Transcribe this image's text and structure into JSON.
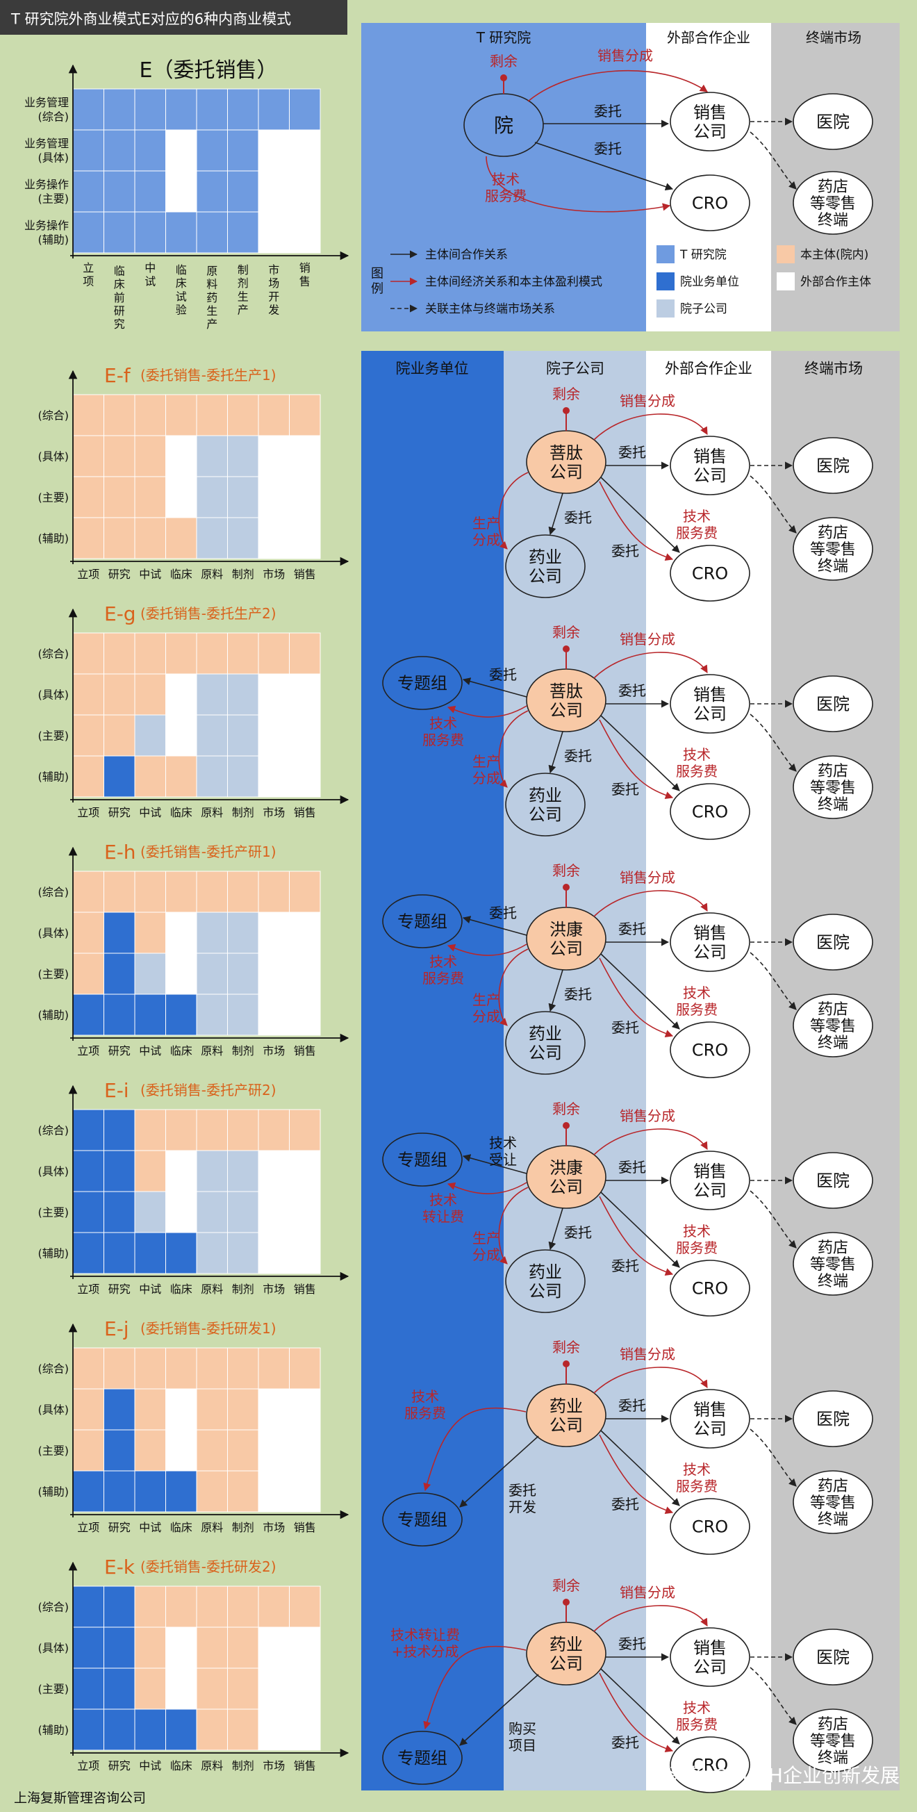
{
  "header": {
    "title": "T 研究院外商业模式E对应的6种内商业模式"
  },
  "colors": {
    "outer_green": "#cbdcae",
    "t_institute_blue": "#6f9be0",
    "business_unit_blue": "#2f6fd0",
    "subsidiary_gray_blue": "#bccde2",
    "self_peach": "#f8c9a6",
    "external_white": "#ffffff",
    "market_gray": "#c6c6c6",
    "red_arrow": "#b8262a",
    "black_arrow": "#222222"
  },
  "top_chart": {
    "title": "E（委托销售）",
    "row_labels": [
      "业务管理\n(综合)",
      "业务管理\n(具体)",
      "业务操作\n(主要)",
      "业务操作\n(辅助)"
    ],
    "col_labels": [
      "立\n项",
      "临\n床\n前\n研\n究",
      "中\n试",
      "临\n床\n试\n验",
      "原\n料\n药\n生\n产",
      "制\n剂\n生\n产",
      "市\n场\n开\n发",
      "销\n售"
    ],
    "grid": [
      [
        "T",
        "T",
        "T",
        "T",
        "T",
        "T",
        "T",
        "T"
      ],
      [
        "T",
        "T",
        "T",
        "W",
        "T",
        "T",
        "W",
        "W"
      ],
      [
        "T",
        "T",
        "T",
        "W",
        "T",
        "T",
        "W",
        "W"
      ],
      [
        "T",
        "T",
        "T",
        "T",
        "T",
        "T",
        "W",
        "W"
      ]
    ]
  },
  "top_diagram": {
    "headers": [
      "T 研究院",
      "外部合作企业",
      "终端市场"
    ],
    "nodes": {
      "institute": "院",
      "sales": "销售\n公司",
      "cro": "CRO",
      "hospital": "医院",
      "pharmacy": "药店\n等零售\n终端"
    },
    "labels": {
      "surplus": "剩余",
      "sales_share": "销售分成",
      "entrust1": "委托",
      "entrust2": "委托",
      "tech_fee": "技术\n服务费"
    },
    "legend": {
      "title": "图\n例",
      "items": [
        "主体间合作关系",
        "主体间经济关系和本主体盈利模式",
        "关联主体与终端市场关系"
      ],
      "swatches": [
        "T 研究院",
        "院业务单位",
        "院子公司",
        "本主体(院内)",
        "外部合作主体"
      ]
    }
  },
  "lower_headers": [
    "院业务单位",
    "院子公司",
    "外部合作企业",
    "终端市场"
  ],
  "small_row_labels": [
    "(综合)",
    "(具体)",
    "(主要)",
    "(辅助)"
  ],
  "small_col_labels": [
    "立项",
    "研究",
    "中试",
    "临床",
    "原料",
    "制剂",
    "市场",
    "销售"
  ],
  "sections": [
    {
      "title": "E-f",
      "subtitle": "(委托销售-委托生产1)",
      "grid": [
        [
          "P",
          "P",
          "P",
          "P",
          "P",
          "P",
          "P",
          "P"
        ],
        [
          "P",
          "P",
          "P",
          "W",
          "S",
          "S",
          "W",
          "W"
        ],
        [
          "P",
          "P",
          "P",
          "W",
          "S",
          "S",
          "W",
          "W"
        ],
        [
          "P",
          "P",
          "P",
          "P",
          "S",
          "S",
          "W",
          "W"
        ]
      ],
      "center": "菩肽\n公司",
      "group": "",
      "group_link": "",
      "group_fee": "",
      "bottom": "药业\n公司",
      "labels": {
        "surplus": "剩余",
        "sales_share": "销售分成",
        "entrust_sales": "委托",
        "entrust_bottom": "委托",
        "entrust_cro": "委托",
        "prod_share": "生产\n分成",
        "tech_fee": "技术\n服务费"
      },
      "sales": "销售\n公司",
      "cro": "CRO",
      "hospital": "医院",
      "pharmacy": "药店\n等零售\n终端"
    },
    {
      "title": "E-g",
      "subtitle": "(委托销售-委托生产2)",
      "grid": [
        [
          "P",
          "P",
          "P",
          "P",
          "P",
          "P",
          "P",
          "P"
        ],
        [
          "P",
          "P",
          "P",
          "W",
          "S",
          "S",
          "W",
          "W"
        ],
        [
          "P",
          "P",
          "S",
          "W",
          "S",
          "S",
          "W",
          "W"
        ],
        [
          "P",
          "B",
          "P",
          "P",
          "S",
          "S",
          "W",
          "W"
        ]
      ],
      "center": "菩肽\n公司",
      "group": "专题组",
      "group_link": "委托",
      "group_fee": "技术\n服务费",
      "bottom": "药业\n公司",
      "labels": {
        "surplus": "剩余",
        "sales_share": "销售分成",
        "entrust_sales": "委托",
        "entrust_bottom": "委托",
        "entrust_cro": "委托",
        "prod_share": "生产\n分成",
        "tech_fee": "技术\n服务费"
      },
      "sales": "销售\n公司",
      "cro": "CRO",
      "hospital": "医院",
      "pharmacy": "药店\n等零售\n终端"
    },
    {
      "title": "E-h",
      "subtitle": "(委托销售-委托产研1)",
      "grid": [
        [
          "P",
          "P",
          "P",
          "P",
          "P",
          "P",
          "P",
          "P"
        ],
        [
          "P",
          "B",
          "P",
          "W",
          "S",
          "S",
          "W",
          "W"
        ],
        [
          "P",
          "B",
          "S",
          "W",
          "S",
          "S",
          "W",
          "W"
        ],
        [
          "B",
          "B",
          "B",
          "B",
          "S",
          "S",
          "W",
          "W"
        ]
      ],
      "center": "洪康\n公司",
      "group": "专题组",
      "group_link": "委托",
      "group_fee": "技术\n服务费",
      "bottom": "药业\n公司",
      "labels": {
        "surplus": "剩余",
        "sales_share": "销售分成",
        "entrust_sales": "委托",
        "entrust_bottom": "委托",
        "entrust_cro": "委托",
        "prod_share": "生产\n分成",
        "tech_fee": "技术\n服务费"
      },
      "sales": "销售\n公司",
      "cro": "CRO",
      "hospital": "医院",
      "pharmacy": "药店\n等零售\n终端"
    },
    {
      "title": "E-i",
      "subtitle": "(委托销售-委托产研2)",
      "grid": [
        [
          "B",
          "B",
          "P",
          "P",
          "P",
          "P",
          "P",
          "P"
        ],
        [
          "B",
          "B",
          "P",
          "W",
          "S",
          "S",
          "W",
          "W"
        ],
        [
          "B",
          "B",
          "S",
          "W",
          "S",
          "S",
          "W",
          "W"
        ],
        [
          "B",
          "B",
          "B",
          "B",
          "S",
          "S",
          "W",
          "W"
        ]
      ],
      "center": "洪康\n公司",
      "group": "专题组",
      "group_link": "技术\n受让",
      "group_fee": "技术\n转让费",
      "bottom": "药业\n公司",
      "labels": {
        "surplus": "剩余",
        "sales_share": "销售分成",
        "entrust_sales": "委托",
        "entrust_bottom": "委托",
        "entrust_cro": "委托",
        "prod_share": "生产\n分成",
        "tech_fee": "技术\n服务费"
      },
      "sales": "销售\n公司",
      "cro": "CRO",
      "hospital": "医院",
      "pharmacy": "药店\n等零售\n终端"
    },
    {
      "title": "E-j",
      "subtitle": "(委托销售-委托研发1)",
      "grid": [
        [
          "P",
          "P",
          "P",
          "P",
          "P",
          "P",
          "P",
          "P"
        ],
        [
          "P",
          "B",
          "P",
          "W",
          "P",
          "P",
          "W",
          "W"
        ],
        [
          "P",
          "B",
          "P",
          "W",
          "P",
          "P",
          "W",
          "W"
        ],
        [
          "B",
          "B",
          "B",
          "B",
          "P",
          "P",
          "W",
          "W"
        ]
      ],
      "center": "药业\n公司",
      "group": "专题组",
      "group_link": "委托\n开发",
      "group_fee": "技术\n服务费",
      "bottom": "",
      "labels": {
        "surplus": "剩余",
        "sales_share": "销售分成",
        "entrust_sales": "委托",
        "entrust_bottom": "",
        "entrust_cro": "委托",
        "prod_share": "",
        "tech_fee": "技术\n服务费"
      },
      "sales": "销售\n公司",
      "cro": "CRO",
      "hospital": "医院",
      "pharmacy": "药店\n等零售\n终端"
    },
    {
      "title": "E-k",
      "subtitle": "(委托销售-委托研发2)",
      "grid": [
        [
          "B",
          "B",
          "P",
          "P",
          "P",
          "P",
          "P",
          "P"
        ],
        [
          "B",
          "B",
          "P",
          "W",
          "P",
          "P",
          "W",
          "W"
        ],
        [
          "B",
          "B",
          "P",
          "W",
          "P",
          "P",
          "W",
          "W"
        ],
        [
          "B",
          "B",
          "B",
          "B",
          "P",
          "P",
          "W",
          "W"
        ]
      ],
      "center": "药业\n公司",
      "group": "专题组",
      "group_link": "购买\n项目",
      "group_fee": "技术转让费\n+技术分成",
      "bottom": "",
      "labels": {
        "surplus": "剩余",
        "sales_share": "销售分成",
        "entrust_sales": "委托",
        "entrust_bottom": "",
        "entrust_cro": "委托",
        "prod_share": "",
        "tech_fee": "技术\n服务费"
      },
      "sales": "销售\n公司",
      "cro": "CRO",
      "hospital": "医院",
      "pharmacy": "药店\n等零售\n终端"
    }
  ],
  "footer": {
    "company": "上海复斯管理咨询公司",
    "watermark": "头条 @FUTH企业创新发展"
  }
}
